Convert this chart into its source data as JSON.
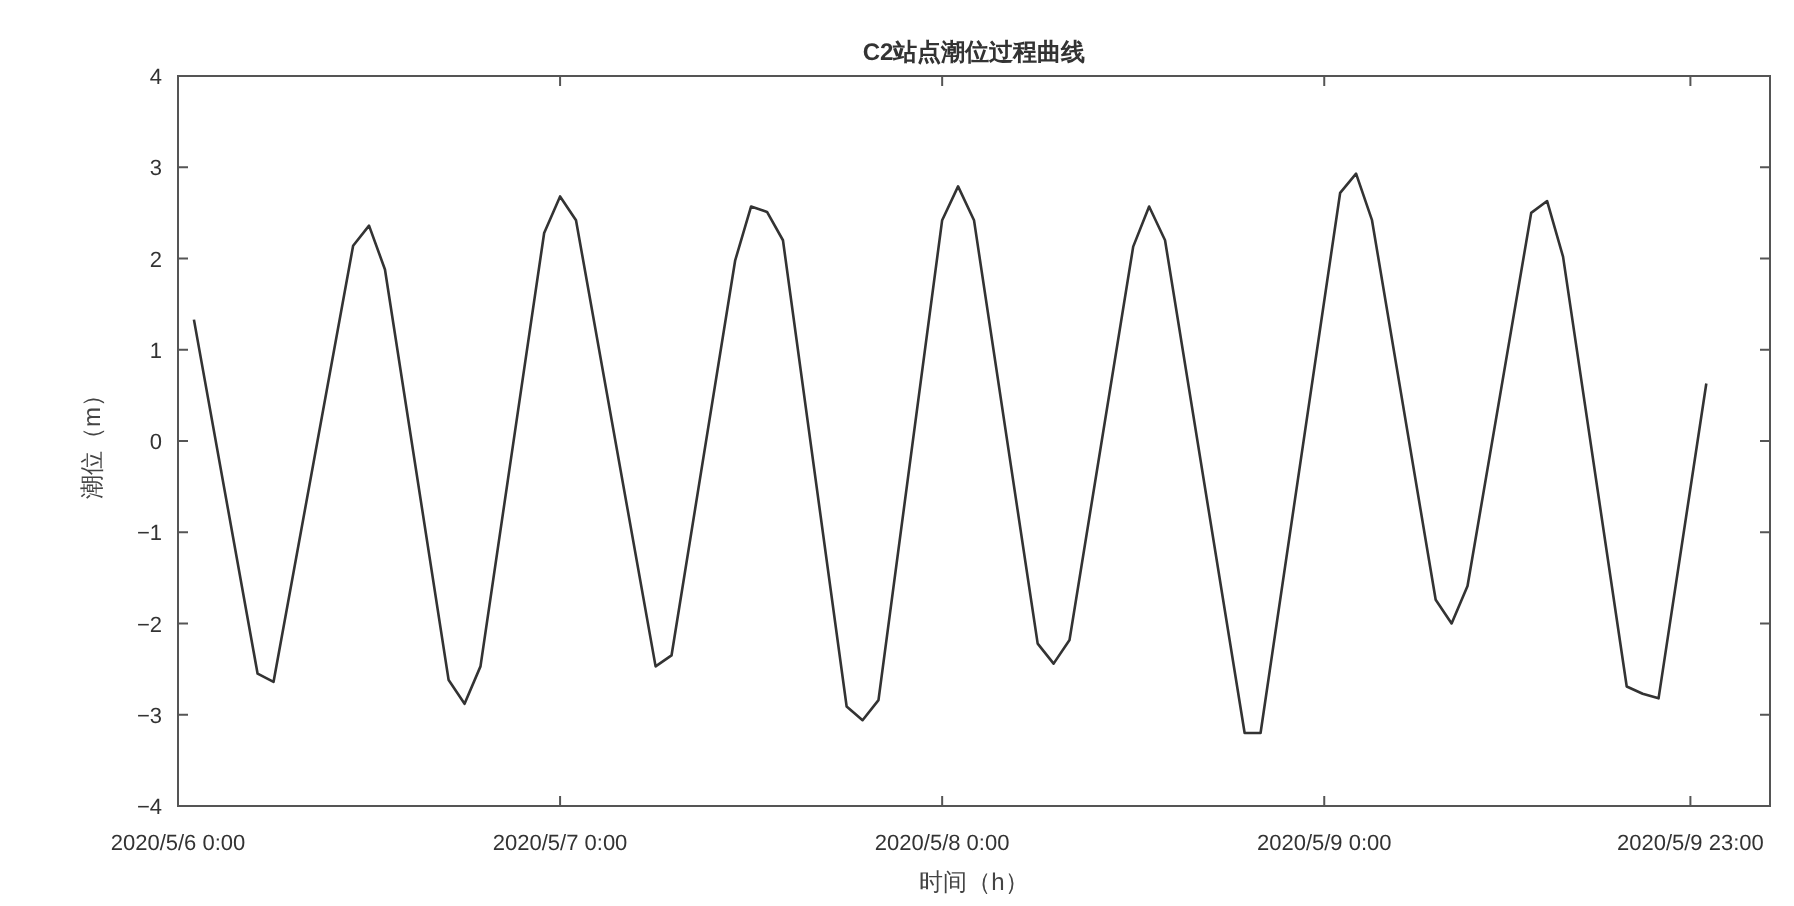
{
  "chart_data": {
    "type": "line",
    "title": "C2站点潮位过程曲线",
    "xlabel": "时间（h）",
    "ylabel": "潮位（m）",
    "x": [
      "2020-05-06T01:00",
      "2020-05-06T05:00",
      "2020-05-06T06:00",
      "2020-05-06T11:00",
      "2020-05-06T12:00",
      "2020-05-06T13:00",
      "2020-05-06T17:00",
      "2020-05-06T18:00",
      "2020-05-06T19:00",
      "2020-05-06T23:00",
      "2020-05-07T00:00",
      "2020-05-07T01:00",
      "2020-05-07T06:00",
      "2020-05-07T07:00",
      "2020-05-07T11:00",
      "2020-05-07T12:00",
      "2020-05-07T13:00",
      "2020-05-07T14:00",
      "2020-05-07T18:00",
      "2020-05-07T19:00",
      "2020-05-07T20:00",
      "2020-05-08T00:00",
      "2020-05-08T01:00",
      "2020-05-08T02:00",
      "2020-05-08T06:00",
      "2020-05-08T07:00",
      "2020-05-08T08:00",
      "2020-05-08T12:00",
      "2020-05-08T13:00",
      "2020-05-08T14:00",
      "2020-05-08T19:00",
      "2020-05-08T20:00",
      "2020-05-09T01:00",
      "2020-05-09T02:00",
      "2020-05-09T03:00",
      "2020-05-09T07:00",
      "2020-05-09T08:00",
      "2020-05-09T09:00",
      "2020-05-09T13:00",
      "2020-05-09T14:00",
      "2020-05-09T15:00",
      "2020-05-09T19:00",
      "2020-05-09T20:00",
      "2020-05-09T21:00",
      "2020-05-10T00:00"
    ],
    "series": [
      {
        "color": "#333333",
        "values": [
          1.33,
          -2.55,
          -2.64,
          2.14,
          2.36,
          1.88,
          -2.62,
          -2.88,
          -2.47,
          2.28,
          2.68,
          2.42,
          -2.47,
          -2.35,
          1.98,
          2.57,
          2.51,
          2.2,
          -2.91,
          -3.06,
          -2.84,
          2.42,
          2.79,
          2.42,
          -2.22,
          -2.44,
          -2.18,
          2.13,
          2.57,
          2.2,
          -3.2,
          -3.2,
          2.72,
          2.93,
          2.42,
          -1.74,
          -2.0,
          -1.59,
          2.5,
          2.63,
          2.02,
          -2.69,
          -2.77,
          -2.82,
          0.63
        ]
      }
    ],
    "xlim": [
      "2020-05-06T00:00",
      "2020-05-10T04:00"
    ],
    "xticks": [
      {
        "value": "2020-05-06T00:00",
        "label": "2020/5/6 0:00"
      },
      {
        "value": "2020-05-07T00:00",
        "label": "2020/5/7 0:00"
      },
      {
        "value": "2020-05-08T00:00",
        "label": "2020/5/8 0:00"
      },
      {
        "value": "2020-05-09T00:00",
        "label": "2020/5/9 0:00"
      },
      {
        "value": "2020-05-09T23:00",
        "label": "2020/5/9 23:00"
      }
    ],
    "ylim": [
      -4,
      4
    ],
    "yticks": [
      -4,
      -3,
      -2,
      -1,
      0,
      1,
      2,
      3,
      4
    ]
  }
}
